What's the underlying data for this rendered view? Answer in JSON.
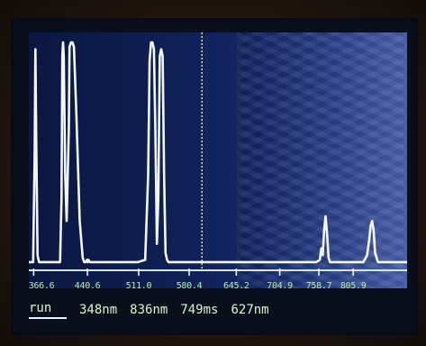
{
  "status": {
    "mode": "run",
    "values": [
      "348nm",
      "836nm",
      "749ms",
      "627nm"
    ]
  },
  "chart_data": {
    "type": "line",
    "xlim": [
      360,
      880
    ],
    "ylim": [
      0,
      100
    ],
    "ticks": [
      "366.6",
      "440.6",
      "511.0",
      "580.4",
      "645.2",
      "704.9",
      "758.7",
      "805.9"
    ],
    "tick_positions": [
      366.6,
      440.6,
      511.0,
      580.4,
      645.2,
      704.9,
      758.7,
      805.9
    ],
    "cursor_x": 598,
    "series": [
      {
        "values_x": [
          360,
          366,
          368,
          369,
          370,
          372,
          374,
          376,
          400,
          403,
          405,
          406,
          407,
          408,
          410,
          412,
          415,
          416,
          418,
          420,
          422,
          425,
          430,
          434,
          436,
          438,
          440,
          441,
          442,
          444,
          448,
          450,
          455,
          460,
          470,
          490,
          510,
          520,
          524,
          526,
          528,
          530,
          532,
          534,
          536,
          538,
          540,
          542,
          544,
          546,
          548,
          550,
          552,
          556,
          560,
          580,
          600,
          620,
          640,
          660,
          680,
          700,
          720,
          740,
          755,
          760,
          762,
          764,
          766,
          768,
          770,
          772,
          774,
          780,
          800,
          820,
          825,
          828,
          830,
          832,
          834,
          836,
          840,
          860,
          880
        ],
        "values_y": [
          2,
          2,
          50,
          95,
          60,
          5,
          2,
          2,
          2,
          2,
          30,
          92,
          98,
          92,
          40,
          20,
          60,
          96,
          98,
          98,
          96,
          70,
          20,
          4,
          2,
          2,
          3,
          2,
          3,
          2,
          2,
          2,
          2,
          2,
          2,
          2,
          2,
          3,
          40,
          90,
          98,
          98,
          95,
          60,
          10,
          30,
          92,
          95,
          92,
          40,
          6,
          3,
          2,
          2,
          2,
          2,
          2,
          2,
          2,
          2,
          2,
          2,
          2,
          2,
          2,
          3,
          8,
          5,
          16,
          22,
          14,
          4,
          2,
          2,
          2,
          2,
          5,
          12,
          18,
          20,
          16,
          6,
          2,
          2,
          2
        ]
      }
    ]
  }
}
